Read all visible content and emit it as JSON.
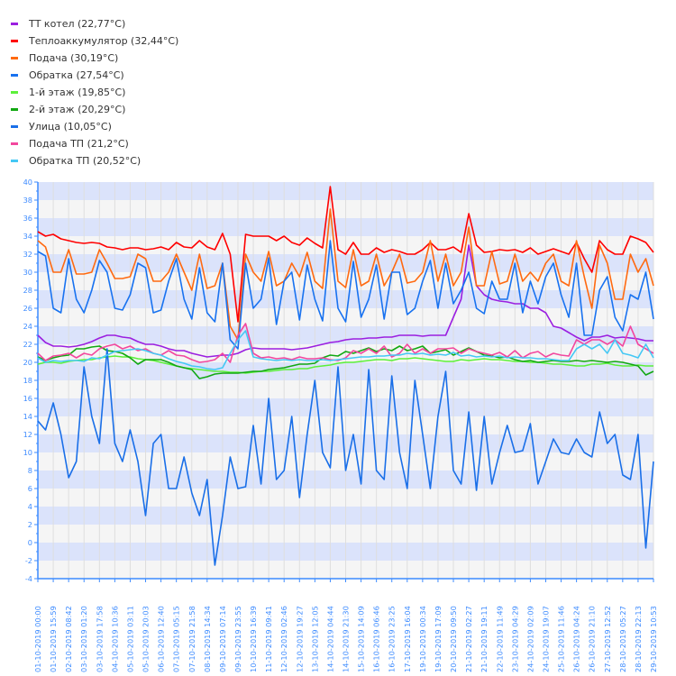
{
  "chart_data": {
    "type": "line",
    "title": "",
    "xlabel": "",
    "ylabel": "",
    "ylim": [
      -4,
      40
    ],
    "y_ticks": [
      -4,
      -2,
      0,
      2,
      4,
      6,
      8,
      10,
      12,
      14,
      16,
      18,
      20,
      22,
      24,
      26,
      28,
      30,
      32,
      34,
      36,
      38,
      40
    ],
    "grid": true,
    "legend_position": "top-left",
    "x_tick_labels": [
      "01-10-2019 00:00",
      "01-10-2019 15:59",
      "02-10-2019 08:42",
      "03-10-2019 01:20",
      "03-10-2019 17:58",
      "04-10-2019 10:36",
      "05-10-2019 03:11",
      "05-10-2019 20:03",
      "06-10-2019 12:40",
      "07-10-2019 05:15",
      "07-10-2019 21:58",
      "08-10-2019 14:34",
      "09-10-2019 07:14",
      "09-10-2019 23:55",
      "10-10-2019 16:39",
      "11-10-2019 09:41",
      "12-10-2019 02:46",
      "12-10-2019 19:27",
      "13-10-2019 12:05",
      "14-10-2019 04:44",
      "14-10-2019 21:30",
      "15-10-2019 14:09",
      "16-10-2019 06:46",
      "16-10-2019 23:25",
      "17-10-2019 16:04",
      "19-10-2019 00:34",
      "19-10-2019 17:09",
      "20-10-2019 09:50",
      "21-10-2019 02:27",
      "21-10-2019 19:11",
      "22-10-2019 11:49",
      "23-10-2019 04:29",
      "24-10-2019 02:09",
      "24-10-2019 19:07",
      "25-10-2019 11:46",
      "26-10-2019 04:24",
      "26-10-2019 21:10",
      "27-10-2019 12:52",
      "28-10-2019 05:27",
      "28-10-2019 22:13",
      "29-10-2019 10:53"
    ],
    "series": [
      {
        "name": "ТТ котел (22,77°C)",
        "color": "#9b1fe0",
        "values": [
          23,
          22.2,
          21.8,
          21.8,
          21.7,
          21.8,
          22,
          22.3,
          22.7,
          23,
          23,
          22.8,
          22.7,
          22.3,
          22,
          22,
          21.8,
          21.5,
          21.3,
          21.3,
          21,
          20.8,
          20.6,
          20.7,
          20.8,
          20.8,
          21,
          21.4,
          21.6,
          21.5,
          21.5,
          21.5,
          21.5,
          21.4,
          21.5,
          21.6,
          21.8,
          22,
          22.2,
          22.3,
          22.5,
          22.6,
          22.6,
          22.7,
          22.7,
          22.8,
          22.8,
          23,
          23,
          23,
          22.9,
          23,
          23,
          23,
          25,
          27,
          33,
          28.5,
          27.5,
          27,
          26.8,
          26.7,
          26.5,
          26.5,
          26,
          26,
          25.5,
          24,
          23.8,
          23.3,
          22.8,
          22.4,
          22.8,
          22.8,
          23,
          22.7,
          22.8,
          22.7,
          22.6,
          22.4,
          22.4
        ]
      },
      {
        "name": "Теплоаккумулятор (32,44°C)",
        "color": "#ff0000",
        "values": [
          34.5,
          34,
          34.2,
          33.7,
          33.5,
          33.3,
          33.2,
          33.3,
          33.2,
          32.8,
          32.7,
          32.5,
          32.7,
          32.7,
          32.5,
          32.6,
          32.8,
          32.5,
          33.3,
          32.8,
          32.7,
          33.5,
          32.8,
          32.5,
          34.3,
          32,
          24.5,
          34.2,
          34,
          34,
          34,
          33.5,
          34,
          33.3,
          33,
          33.8,
          33.2,
          32.7,
          39.5,
          32.5,
          32,
          33.3,
          32,
          32,
          32.7,
          32.2,
          32.5,
          32.3,
          32,
          32,
          32.5,
          33.3,
          32.5,
          32.5,
          32.8,
          32.2,
          36.5,
          33,
          32.2,
          32.3,
          32.5,
          32.4,
          32.5,
          32.2,
          32.7,
          32,
          32.3,
          32.6,
          32.3,
          32,
          33.3,
          31.5,
          30,
          33.5,
          32.5,
          32,
          32,
          34,
          33.7,
          33.3,
          32.2
        ]
      },
      {
        "name": "Подача (30,19°C)",
        "color": "#ff6a10",
        "values": [
          33.5,
          32.8,
          30,
          30,
          32.5,
          29.8,
          29.8,
          30,
          32.5,
          31,
          29.3,
          29.3,
          29.5,
          32,
          31.5,
          29,
          29,
          30,
          32,
          30,
          28,
          32,
          28.2,
          28.5,
          31,
          24,
          22.5,
          32,
          30,
          29,
          32.3,
          28.5,
          29,
          31,
          29.5,
          32.2,
          29,
          28.2,
          37,
          29,
          28.3,
          32.5,
          28.5,
          29,
          32,
          28.5,
          30,
          32,
          28.8,
          29,
          30,
          33.5,
          29,
          32,
          28.5,
          30,
          35,
          28.5,
          28.5,
          32.3,
          28.7,
          29,
          32,
          29,
          30,
          29,
          31,
          32,
          29,
          28.5,
          33.5,
          29.5,
          26,
          33,
          31,
          27,
          27,
          32,
          30,
          31.5,
          28.5
        ]
      },
      {
        "name": "Обратка (27,54°C)",
        "color": "#1872f0",
        "values": [
          32.3,
          31.8,
          26,
          25.5,
          31.5,
          27,
          25.5,
          28,
          31.3,
          30,
          26,
          25.8,
          27.5,
          31,
          30.5,
          25.5,
          25.8,
          29,
          31.5,
          27,
          24.8,
          30.5,
          25.5,
          24.5,
          31,
          22.5,
          21.5,
          31,
          26,
          27,
          31.6,
          24.2,
          29,
          30,
          24.7,
          30.8,
          27,
          24.6,
          33.5,
          26,
          24.5,
          31.2,
          25,
          27,
          30.8,
          24.8,
          30,
          30,
          25.3,
          26,
          29,
          31.3,
          26,
          31,
          26.5,
          28,
          30,
          26,
          25.4,
          29,
          27,
          27,
          31,
          25.5,
          29,
          26.5,
          29.5,
          31,
          27.5,
          25,
          31,
          23,
          23,
          28,
          29.5,
          25,
          23.5,
          27.5,
          27,
          30,
          24.8
        ]
      },
      {
        "name": "1-й этаж (19,85°C)",
        "color": "#5cf03a",
        "values": [
          19.8,
          20,
          20,
          19.9,
          20.1,
          20.2,
          20.3,
          20.3,
          20.5,
          20.6,
          20.7,
          20.6,
          20.6,
          20.4,
          20.3,
          20.2,
          20,
          19.8,
          19.6,
          19.4,
          19.3,
          19.2,
          19.1,
          19,
          19,
          18.9,
          18.9,
          18.8,
          18.9,
          19,
          19,
          19.1,
          19.2,
          19.2,
          19.3,
          19.3,
          19.5,
          19.6,
          19.7,
          19.9,
          20,
          20,
          20.1,
          20.2,
          20.3,
          20.3,
          20.2,
          20.4,
          20.4,
          20.5,
          20.4,
          20.3,
          20.2,
          20.1,
          20.1,
          20.3,
          20.2,
          20.3,
          20.4,
          20.3,
          20.3,
          20.2,
          20.1,
          20.1,
          20,
          20,
          19.9,
          19.8,
          19.8,
          19.7,
          19.6,
          19.6,
          19.8,
          19.8,
          19.9,
          19.7,
          19.6,
          19.6,
          19.7,
          19.6,
          19.6
        ]
      },
      {
        "name": "2-й этаж (20,29°C)",
        "color": "#12a812",
        "values": [
          20.6,
          20.2,
          20.5,
          20.7,
          20.8,
          21.5,
          21.5,
          21.7,
          21.8,
          21.3,
          21.2,
          21,
          20.5,
          19.8,
          20.3,
          20.3,
          20.3,
          20,
          19.6,
          19.4,
          19.2,
          18.2,
          18.4,
          18.7,
          18.8,
          18.8,
          18.8,
          18.9,
          19,
          19,
          19.2,
          19.3,
          19.4,
          19.6,
          19.8,
          19.8,
          19.9,
          20.5,
          20.8,
          20.7,
          21.2,
          21,
          21.3,
          21.6,
          21.2,
          21.5,
          21.3,
          21.8,
          21.3,
          21.5,
          21.8,
          21,
          21.2,
          21.4,
          20.8,
          21.2,
          21.6,
          21.2,
          20.8,
          20.7,
          20.5,
          20.6,
          20.3,
          20.1,
          20.2,
          20,
          20.1,
          20.2,
          20.1,
          20.1,
          20.2,
          20.1,
          20.2,
          20.1,
          20,
          20.1,
          20,
          19.8,
          19.6,
          18.6,
          19
        ]
      },
      {
        "name": "Улица (10,05°C)",
        "color": "#1a6fe8",
        "values": [
          13.5,
          12.5,
          15.5,
          12,
          7.2,
          9,
          19.5,
          14,
          11,
          21.5,
          11,
          9,
          12.5,
          9,
          3,
          11,
          12,
          6,
          6,
          9.5,
          5.5,
          3,
          7,
          -2.5,
          3,
          9.5,
          6,
          6.2,
          13,
          6.5,
          16,
          7,
          8,
          14,
          5,
          12,
          18,
          10,
          8.3,
          19.5,
          8,
          12,
          6.5,
          19.2,
          8,
          7,
          18.5,
          10,
          6,
          18,
          12,
          6,
          14,
          19,
          8,
          6.5,
          14.5,
          5.8,
          14,
          6.5,
          10,
          13,
          10,
          10.2,
          13.2,
          6.5,
          9,
          11.5,
          10,
          9.8,
          11.5,
          10,
          9.5,
          14.5,
          11,
          12,
          7.5,
          7,
          12,
          -0.6,
          9
        ]
      },
      {
        "name": "Подача ТП (21,2°C)",
        "color": "#f2479e",
        "values": [
          21,
          20.2,
          20.7,
          20.8,
          21,
          20.5,
          21,
          20.8,
          21.5,
          21.8,
          22,
          21.5,
          21.8,
          21.3,
          21.5,
          21,
          20.8,
          21.3,
          20.8,
          20.7,
          20.3,
          20,
          20.1,
          20.3,
          21,
          20,
          23,
          24.3,
          21,
          20.5,
          20.6,
          20.4,
          20.5,
          20.3,
          20.6,
          20.4,
          20.4,
          20.5,
          20.3,
          20.2,
          20.5,
          21.3,
          21,
          21.5,
          21,
          21.8,
          20.6,
          21,
          22,
          21,
          21.5,
          21,
          21.5,
          21.5,
          21.6,
          21,
          21.5,
          21.2,
          21,
          20.8,
          21.1,
          20.6,
          21.3,
          20.5,
          21,
          21.2,
          20.6,
          21,
          20.8,
          20.7,
          22.5,
          22,
          22.5,
          22.5,
          22,
          22.5,
          21.8,
          24,
          22,
          21.5,
          21
        ]
      },
      {
        "name": "Обратка ТП (20,52°C)",
        "color": "#45c8f5",
        "values": [
          20.5,
          20,
          20.2,
          20.1,
          20.2,
          20.2,
          20.1,
          20.5,
          20.4,
          20.8,
          21.2,
          21.3,
          21.4,
          21.5,
          21.3,
          21,
          20.8,
          20.4,
          20.1,
          19.9,
          19.6,
          19.5,
          19.3,
          19.2,
          19.4,
          21,
          22.5,
          23.5,
          20.6,
          20.4,
          20.3,
          20.2,
          20.3,
          20.2,
          20.3,
          20.2,
          20.2,
          20.3,
          20.2,
          20.3,
          20.4,
          20.5,
          20.6,
          20.6,
          20.7,
          20.7,
          20.8,
          20.8,
          21,
          20.9,
          21,
          20.8,
          20.9,
          20.8,
          21.1,
          20.7,
          20.8,
          20.6,
          20.7,
          20.6,
          20.7,
          20.5,
          20.6,
          20.5,
          20.5,
          20.4,
          20.4,
          20.3,
          20.2,
          20.2,
          21.5,
          22,
          21.5,
          22,
          21,
          22.5,
          21,
          20.8,
          20.5,
          22,
          20.5
        ]
      }
    ]
  }
}
